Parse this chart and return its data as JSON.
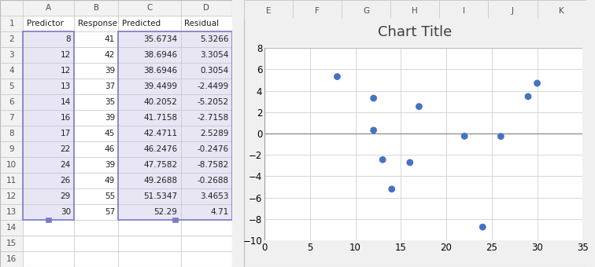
{
  "predictor": [
    8,
    12,
    12,
    13,
    14,
    16,
    17,
    22,
    24,
    26,
    29,
    30
  ],
  "residual": [
    5.3266,
    3.3054,
    0.3054,
    -2.4499,
    -5.2052,
    -2.7158,
    2.5289,
    -0.2476,
    -8.7582,
    -0.2688,
    3.4653,
    4.71
  ],
  "col_headers": [
    "A",
    "B",
    "C",
    "D"
  ],
  "row_headers": [
    "1",
    "2",
    "3",
    "4",
    "5",
    "6",
    "7",
    "8",
    "9",
    "10",
    "11",
    "12",
    "13",
    "14",
    "15",
    "16"
  ],
  "header_row": [
    "Predictor",
    "Response",
    "Predicted",
    "Residual"
  ],
  "col_A": [
    8,
    12,
    12,
    13,
    14,
    16,
    17,
    22,
    24,
    26,
    29,
    30
  ],
  "col_B": [
    41,
    42,
    39,
    37,
    35,
    39,
    45,
    46,
    39,
    49,
    55,
    57
  ],
  "col_C": [
    "35.6734",
    "38.6946",
    "38.6946",
    "39.4499",
    "40.2052",
    "41.7158",
    "42.4711",
    "46.2476",
    "47.7582",
    "49.2688",
    "51.5347",
    "52.29"
  ],
  "col_D": [
    "5.3266",
    "3.3054",
    "0.3054",
    "-2.4499",
    "-5.2052",
    "-2.7158",
    "2.5289",
    "-0.2476",
    "-8.7582",
    "-0.2688",
    "3.4653",
    "4.71"
  ],
  "title": "Chart Title",
  "title_fontsize": 13,
  "xlim": [
    0,
    35
  ],
  "ylim": [
    -10,
    8
  ],
  "xticks": [
    0,
    5,
    10,
    15,
    20,
    25,
    30,
    35
  ],
  "yticks": [
    -10,
    -8,
    -6,
    -4,
    -2,
    0,
    2,
    4,
    6,
    8
  ],
  "dot_color": "#4472C4",
  "dot_size": 20,
  "grid_color": "#D0D0D0",
  "cell_highlight_color": "#E8E5F5",
  "header_bg": "#F2F2F2",
  "cell_border": "#C8C8C8",
  "select_border": "#7B7BC8",
  "fig_bg": "#F0F0F0",
  "sheet_bg": "#FFFFFF",
  "tick_fontsize": 8.5
}
